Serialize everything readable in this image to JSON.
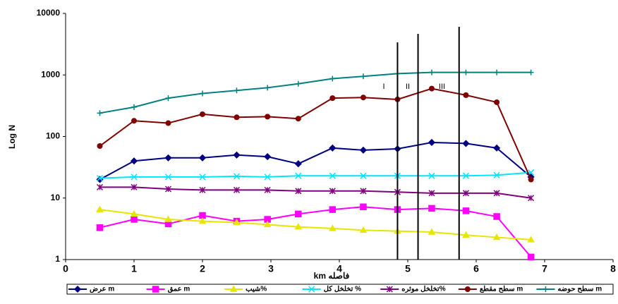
{
  "chart_data": {
    "type": "line",
    "y_label": "Log N",
    "x_label": "km فاصله",
    "y_log": true,
    "xlim": [
      0,
      8
    ],
    "xticks": [
      0,
      1,
      2,
      3,
      4,
      5,
      6,
      7,
      8
    ],
    "ylim": [
      1,
      10000
    ],
    "yticks": [
      1,
      10,
      100,
      1000,
      10000
    ],
    "x": [
      0.5,
      1,
      1.5,
      2,
      2.5,
      2.95,
      3.4,
      3.9,
      4.35,
      4.85,
      5.35,
      5.85,
      6.3,
      6.8
    ],
    "series": [
      {
        "name": "عرض m",
        "color": "#000080",
        "marker": "diamond",
        "values": [
          20,
          40,
          45,
          45,
          50,
          47,
          36,
          65,
          60,
          63,
          80,
          77,
          65,
          22
        ]
      },
      {
        "name": "عمق m",
        "color": "#ff00ff",
        "marker": "square",
        "values": [
          3.3,
          4.5,
          3.8,
          5.2,
          4.2,
          4.5,
          5.5,
          6.5,
          7.2,
          6.5,
          6.8,
          6.2,
          5,
          1.1
        ]
      },
      {
        "name": "شیب%",
        "color": "#e6e600",
        "marker": "triangle",
        "values": [
          6.5,
          5.5,
          4.5,
          4.2,
          4,
          3.7,
          3.4,
          3.2,
          3,
          2.9,
          2.8,
          2.5,
          2.3,
          2.1
        ]
      },
      {
        "name": "تخلخل کل %",
        "color": "#00e5ff",
        "marker": "x",
        "values": [
          21,
          22,
          22,
          22,
          22.5,
          22,
          23,
          23,
          23,
          23,
          23,
          23,
          23.5,
          26
        ]
      },
      {
        "name": "تخلخل موثره%",
        "color": "#800080",
        "marker": "star",
        "values": [
          15,
          15,
          14,
          13.5,
          13.5,
          13.5,
          13,
          13,
          13,
          12.5,
          12,
          12,
          12,
          10
        ]
      },
      {
        "name": "سطح مقطع m",
        "color": "#800000",
        "marker": "circle",
        "values": [
          70,
          180,
          165,
          230,
          205,
          210,
          195,
          420,
          430,
          400,
          600,
          470,
          360,
          20
        ]
      },
      {
        "name": "سطح حوضه m",
        "color": "#008080",
        "marker": "plus",
        "values": [
          240,
          300,
          420,
          500,
          560,
          620,
          720,
          870,
          950,
          1050,
          1100,
          1100,
          1100,
          1100
        ]
      }
    ],
    "vlines": [
      4.85,
      5.15,
      5.75
    ],
    "annotations": [
      {
        "label": "I",
        "x": 4.65
      },
      {
        "label": "II",
        "x": 5.0
      },
      {
        "label": "III",
        "x": 5.5
      }
    ]
  }
}
